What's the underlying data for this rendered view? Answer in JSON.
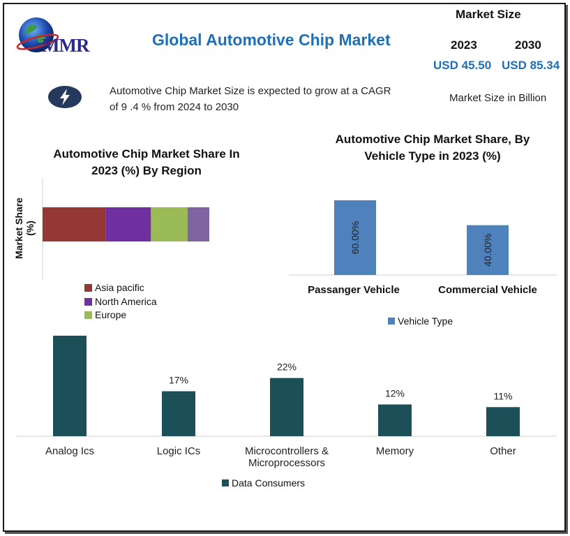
{
  "header": {
    "logo_text": "MMR",
    "title": "Global Automotive Chip Market",
    "market_size_title": "Market Size",
    "years": [
      "2023",
      "2030"
    ],
    "values": [
      "USD 45.50",
      "USD 85.34"
    ],
    "info_line1": "Automotive Chip Market Size is expected to grow at a CAGR",
    "info_line2": "of 9 .4 % from 2024 to 2030",
    "unit_note": "Market Size in Billion"
  },
  "colors": {
    "title_blue": "#1f6fb7",
    "asia_pacific": "#953735",
    "north_america": "#7030a0",
    "europe": "#9bbb59",
    "other_region": "#8064a2",
    "vehicle_bar": "#4f81bd",
    "data_consumers": "#1c4f57"
  },
  "chart_data": [
    {
      "type": "bar",
      "orientation": "horizontal-stacked",
      "title_line1": "Automotive Chip Market Share In",
      "title_line2": "2023 (%) By Region",
      "ylabel": "Market Share (%)",
      "series": [
        {
          "name": "Asia pacific",
          "values": [
            38
          ]
        },
        {
          "name": "North America",
          "values": [
            27
          ]
        },
        {
          "name": "Europe",
          "values": [
            22
          ]
        },
        {
          "name": "",
          "values": [
            13
          ]
        }
      ],
      "legend": [
        "Asia pacific",
        "North America",
        "Europe"
      ],
      "legend_position": "bottom"
    },
    {
      "type": "bar",
      "title_line1": "Automotive Chip Market Share, By",
      "title_line2": "Vehicle Type in 2023 (%)",
      "categories": [
        "Passanger Vehicle",
        "Commercial Vehicle"
      ],
      "values": [
        60,
        40
      ],
      "value_labels": [
        "60.00%",
        "40.00%"
      ],
      "legend": "Vehicle Type",
      "legend_position": "bottom"
    },
    {
      "type": "bar",
      "categories": [
        "Analog Ics",
        "Logic ICs",
        "Microcontrollers &",
        "Memory",
        "Other"
      ],
      "category_line2": [
        "",
        "",
        "Microprocessors",
        "",
        ""
      ],
      "values": [
        38,
        17,
        22,
        12,
        11
      ],
      "value_labels": [
        "",
        "17%",
        "22%",
        "12%",
        "11%"
      ],
      "legend": "Data Consumers",
      "legend_position": "bottom"
    }
  ]
}
